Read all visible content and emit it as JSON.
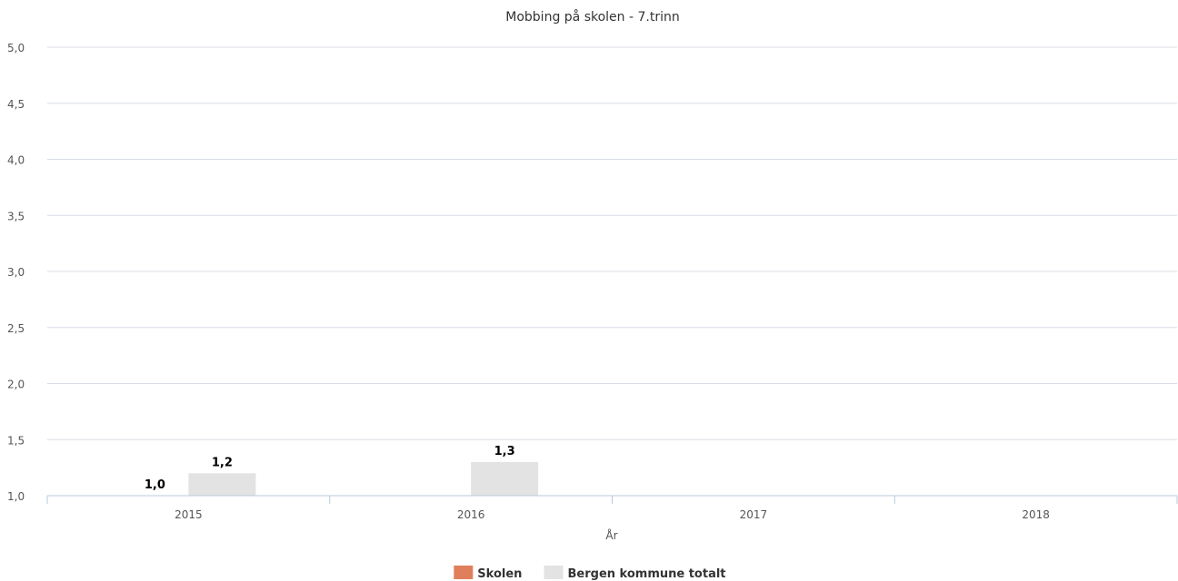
{
  "chart_data": {
    "type": "bar",
    "title": "Mobbing på skolen - 7.trinn",
    "xlabel": "År",
    "ylabel": "",
    "categories": [
      "2015",
      "2016",
      "2017",
      "2018"
    ],
    "y_ticks": [
      "1,0",
      "1,5",
      "2,0",
      "2,5",
      "3,0",
      "3,5",
      "4,0",
      "4,5",
      "5,0"
    ],
    "ylim": [
      1.0,
      5.0
    ],
    "grid": true,
    "legend_position": "bottom-center",
    "series": [
      {
        "name": "Skolen",
        "color": "#e07f5b",
        "values": [
          1.0,
          null,
          null,
          null
        ],
        "labels": [
          "1,0",
          null,
          null,
          null
        ]
      },
      {
        "name": "Bergen kommune totalt",
        "color": "#e3e3e3",
        "values": [
          1.2,
          1.3,
          null,
          null
        ],
        "labels": [
          "1,2",
          "1,3",
          null,
          null
        ]
      }
    ],
    "colors": {
      "grid": "#d8dde6",
      "axis": "#b8c8dc"
    }
  }
}
